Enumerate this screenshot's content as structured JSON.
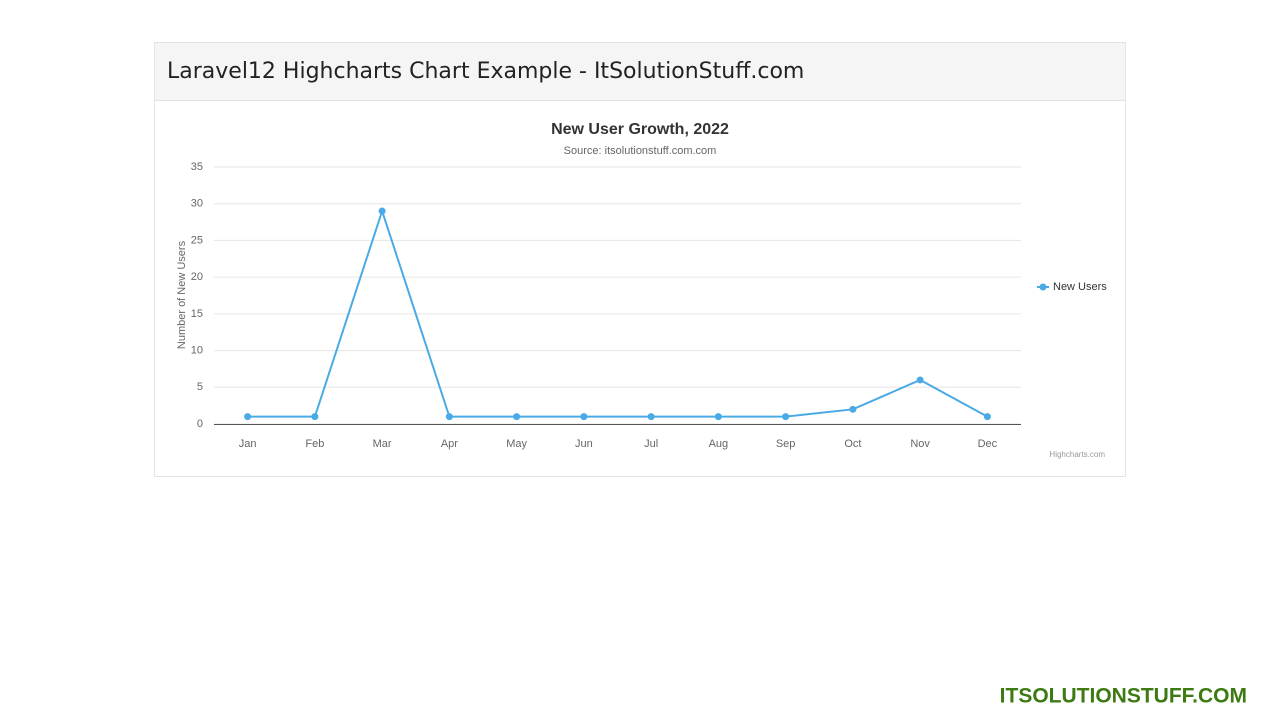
{
  "card_title": "Laravel12 Highcharts Chart Example - ItSolutionStuff.com",
  "watermark": "ITSOLUTIONSTUFF.COM",
  "chart_data": {
    "type": "line",
    "title": "New User Growth, 2022",
    "subtitle": "Source: itsolutionstuff.com.com",
    "y_label": "Number of New Users",
    "categories": [
      "Jan",
      "Feb",
      "Mar",
      "Apr",
      "May",
      "Jun",
      "Jul",
      "Aug",
      "Sep",
      "Oct",
      "Nov",
      "Dec"
    ],
    "series": [
      {
        "name": "New Users",
        "color": "#4aaae6",
        "values": [
          1,
          1,
          29,
          1,
          1,
          1,
          1,
          1,
          1,
          2,
          6,
          1
        ]
      }
    ],
    "ylim": [
      0,
      35
    ],
    "yticks": [
      0,
      5,
      10,
      15,
      20,
      25,
      30,
      35
    ],
    "grid": true,
    "legend": "right",
    "credits": "Highcharts.com"
  }
}
